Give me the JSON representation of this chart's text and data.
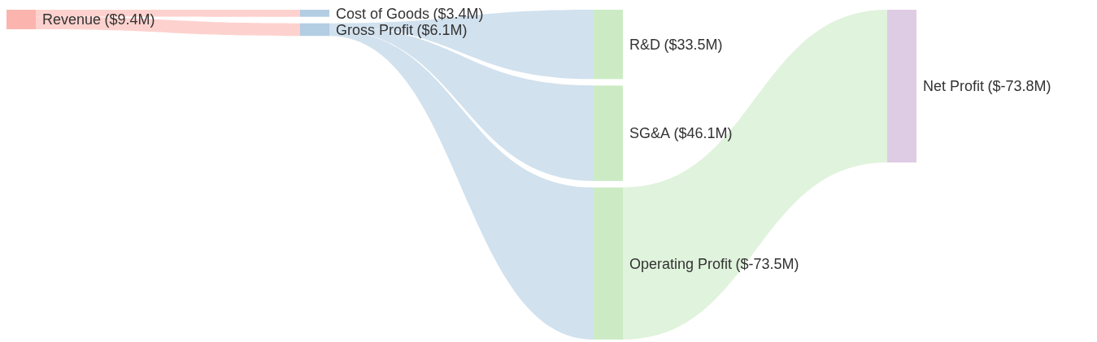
{
  "chart_data": {
    "type": "other",
    "categories": [
      "Revenue",
      "Cost of Goods",
      "Gross Profit",
      "R&D",
      "SG&A",
      "Operating Profit",
      "Net Profit"
    ],
    "series": [
      {
        "color": "#fbb4ae",
        "values": [
          9.4,
          null,
          null,
          null,
          null,
          null,
          null
        ],
        "value_labels": [
          "($9.4M)",
          null,
          null,
          null,
          null,
          null,
          null
        ]
      },
      {
        "color": "#b3cde3",
        "values": [
          null,
          3.4,
          6.1,
          null,
          null,
          null,
          null
        ],
        "value_labels": [
          null,
          "($3.4M)",
          "($6.1M)",
          null,
          null,
          null,
          null
        ]
      },
      {
        "color": "#ccebc5",
        "values": [
          null,
          null,
          null,
          33.5,
          46.1,
          -73.5,
          null
        ],
        "value_labels": [
          null,
          null,
          null,
          "($33.5M)",
          "($46.1M)",
          "($-73.5M)",
          null
        ]
      },
      {
        "color": "#decbe4",
        "values": [
          null,
          null,
          null,
          null,
          null,
          null,
          -73.8
        ],
        "value_labels": [
          null,
          null,
          null,
          null,
          null,
          null,
          "($-73.8M)"
        ]
      }
    ]
  }
}
